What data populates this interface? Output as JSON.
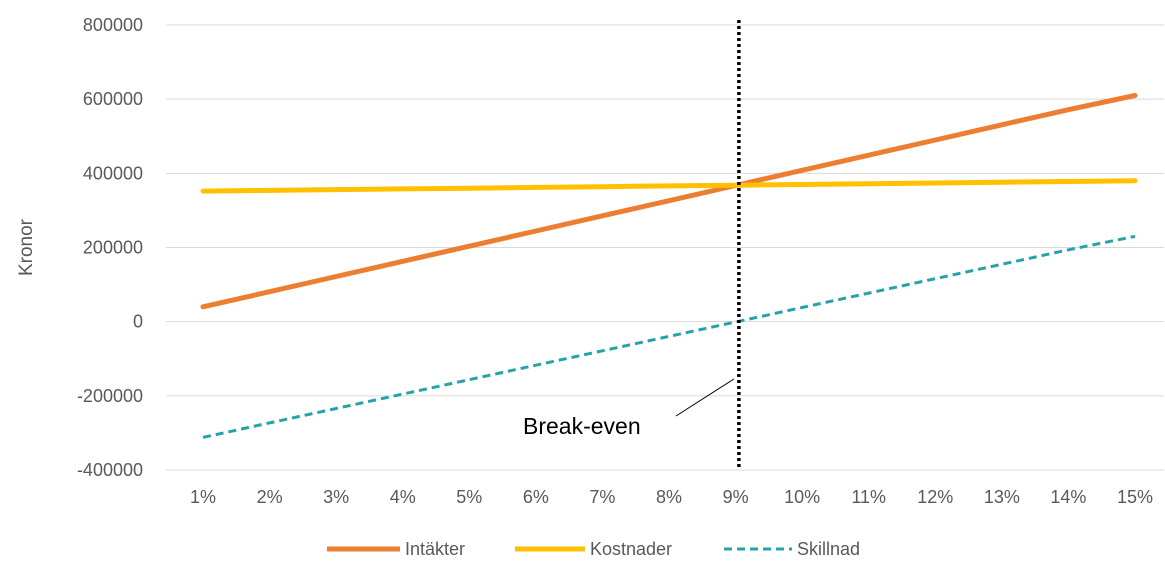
{
  "chart_data": {
    "type": "line",
    "categories": [
      "1%",
      "2%",
      "3%",
      "4%",
      "5%",
      "6%",
      "7%",
      "8%",
      "9%",
      "10%",
      "11%",
      "12%",
      "13%",
      "14%",
      "15%"
    ],
    "ylabel": "Kronor",
    "ylim": [
      -400000,
      800000
    ],
    "yticks": [
      -400000,
      -200000,
      0,
      200000,
      400000,
      600000,
      800000
    ],
    "ytick_labels": [
      "-400000",
      "-200000",
      "0",
      "200000",
      "400000",
      "600000",
      "800000"
    ],
    "grid": "horizontal",
    "legend_position": "bottom",
    "series": [
      {
        "name": "Intäkter",
        "color": "#ED7D31",
        "style": "solid",
        "values": [
          40000,
          80900,
          121800,
          162700,
          203600,
          244500,
          285400,
          326300,
          367200,
          408100,
          449000,
          489900,
          530800,
          571700,
          610000
        ]
      },
      {
        "name": "Kostnader",
        "color": "#FFC000",
        "style": "solid",
        "values": [
          352000,
          354000,
          356000,
          358000,
          360000,
          362000,
          364000,
          366000,
          368000,
          370000,
          372000,
          374000,
          376000,
          378000,
          380000
        ]
      },
      {
        "name": "Skillnad",
        "color": "#26A3A8",
        "style": "dashed",
        "values": [
          -312000,
          -273100,
          -234200,
          -195300,
          -156400,
          -117500,
          -78600,
          -39700,
          -800,
          38100,
          77000,
          115900,
          154800,
          193700,
          230000
        ]
      }
    ],
    "annotations": [
      {
        "text": "Break-even",
        "x_index": 8.05,
        "style": "dotted-vertical-line"
      }
    ]
  }
}
